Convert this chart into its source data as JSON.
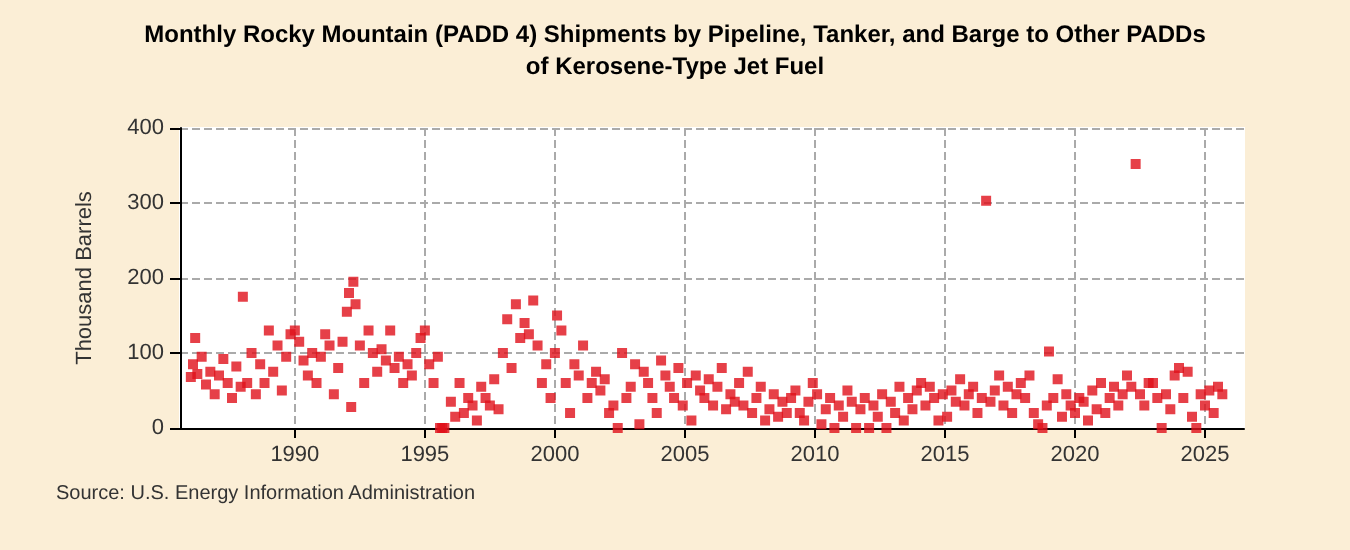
{
  "chart_data": {
    "type": "scatter",
    "title": "Monthly Rocky Mountain (PADD 4) Shipments by Pipeline, Tanker, and Barge to Other PADDs\nof Kerosene-Type Jet Fuel",
    "ylabel": "Thousand Barrels",
    "annotations": [
      "Source: U.S. Energy Information Administration"
    ],
    "x": [
      "1986-01",
      "1986-02",
      "1986-03",
      "1986-04",
      "1986-06",
      "1986-08",
      "1986-10",
      "1986-12",
      "1987-02",
      "1987-04",
      "1987-06",
      "1987-08",
      "1987-10",
      "1987-12",
      "1988-01",
      "1988-03",
      "1988-05",
      "1988-07",
      "1988-09",
      "1988-11",
      "1989-01",
      "1989-03",
      "1989-05",
      "1989-07",
      "1989-09",
      "1989-11",
      "1990-01",
      "1990-03",
      "1990-05",
      "1990-07",
      "1990-09",
      "1990-11",
      "1991-01",
      "1991-03",
      "1991-05",
      "1991-07",
      "1991-09",
      "1991-11",
      "1992-01",
      "1992-02",
      "1992-03",
      "1992-04",
      "1992-05",
      "1992-07",
      "1992-09",
      "1992-11",
      "1993-01",
      "1993-03",
      "1993-05",
      "1993-07",
      "1993-09",
      "1993-11",
      "1994-01",
      "1994-03",
      "1994-05",
      "1994-07",
      "1994-09",
      "1994-11",
      "1995-01",
      "1995-03",
      "1995-05",
      "1995-07",
      "1995-08",
      "1995-09",
      "1995-10",
      "1996-01",
      "1996-03",
      "1996-05",
      "1996-07",
      "1996-09",
      "1996-11",
      "1997-01",
      "1997-03",
      "1997-05",
      "1997-07",
      "1997-09",
      "1997-11",
      "1998-01",
      "1998-03",
      "1998-05",
      "1998-07",
      "1998-09",
      "1998-11",
      "1999-01",
      "1999-03",
      "1999-05",
      "1999-07",
      "1999-09",
      "1999-11",
      "2000-01",
      "2000-02",
      "2000-04",
      "2000-06",
      "2000-08",
      "2000-10",
      "2000-12",
      "2001-02",
      "2001-04",
      "2001-06",
      "2001-08",
      "2001-10",
      "2001-12",
      "2002-02",
      "2002-04",
      "2002-06",
      "2002-08",
      "2002-10",
      "2002-12",
      "2003-02",
      "2003-04",
      "2003-06",
      "2003-08",
      "2003-10",
      "2003-12",
      "2004-02",
      "2004-04",
      "2004-06",
      "2004-08",
      "2004-10",
      "2004-12",
      "2005-02",
      "2005-04",
      "2005-06",
      "2005-08",
      "2005-10",
      "2005-12",
      "2006-02",
      "2006-04",
      "2006-06",
      "2006-08",
      "2006-10",
      "2006-12",
      "2007-02",
      "2007-04",
      "2007-06",
      "2007-08",
      "2007-10",
      "2007-12",
      "2008-02",
      "2008-04",
      "2008-06",
      "2008-08",
      "2008-10",
      "2008-12",
      "2009-02",
      "2009-04",
      "2009-06",
      "2009-08",
      "2009-10",
      "2009-12",
      "2010-02",
      "2010-04",
      "2010-06",
      "2010-08",
      "2010-10",
      "2010-12",
      "2011-02",
      "2011-04",
      "2011-06",
      "2011-08",
      "2011-10",
      "2011-12",
      "2012-02",
      "2012-04",
      "2012-06",
      "2012-08",
      "2012-10",
      "2012-12",
      "2013-02",
      "2013-04",
      "2013-06",
      "2013-08",
      "2013-10",
      "2013-12",
      "2014-02",
      "2014-04",
      "2014-06",
      "2014-08",
      "2014-10",
      "2014-12",
      "2015-02",
      "2015-04",
      "2015-06",
      "2015-08",
      "2015-10",
      "2015-12",
      "2016-02",
      "2016-04",
      "2016-06",
      "2016-08",
      "2016-10",
      "2016-12",
      "2017-02",
      "2017-04",
      "2017-06",
      "2017-08",
      "2017-10",
      "2017-12",
      "2018-02",
      "2018-04",
      "2018-06",
      "2018-08",
      "2018-10",
      "2018-12",
      "2019-01",
      "2019-03",
      "2019-05",
      "2019-07",
      "2019-09",
      "2019-11",
      "2020-01",
      "2020-03",
      "2020-05",
      "2020-07",
      "2020-09",
      "2020-11",
      "2021-01",
      "2021-03",
      "2021-05",
      "2021-07",
      "2021-09",
      "2021-11",
      "2022-01",
      "2022-03",
      "2022-05",
      "2022-07",
      "2022-09",
      "2022-11",
      "2023-01",
      "2023-03",
      "2023-05",
      "2023-07",
      "2023-09",
      "2023-11",
      "2024-01",
      "2024-03",
      "2024-05",
      "2024-07",
      "2024-09",
      "2024-11",
      "2025-01",
      "2025-03",
      "2025-05",
      "2025-07",
      "2025-09"
    ],
    "values": [
      68,
      85,
      120,
      72,
      95,
      58,
      75,
      45,
      70,
      92,
      60,
      40,
      82,
      55,
      175,
      60,
      100,
      45,
      85,
      60,
      130,
      75,
      110,
      50,
      95,
      125,
      130,
      115,
      90,
      70,
      100,
      60,
      95,
      125,
      110,
      45,
      80,
      115,
      155,
      180,
      28,
      195,
      165,
      110,
      60,
      130,
      100,
      75,
      105,
      90,
      130,
      80,
      95,
      60,
      85,
      70,
      100,
      120,
      130,
      85,
      60,
      95,
      0,
      0,
      0,
      35,
      15,
      60,
      20,
      40,
      30,
      10,
      55,
      40,
      30,
      65,
      25,
      100,
      145,
      80,
      165,
      120,
      140,
      125,
      170,
      110,
      60,
      85,
      40,
      100,
      150,
      130,
      60,
      20,
      85,
      70,
      110,
      40,
      60,
      75,
      50,
      65,
      20,
      30,
      0,
      100,
      40,
      55,
      85,
      5,
      75,
      60,
      40,
      20,
      90,
      70,
      55,
      40,
      80,
      30,
      60,
      10,
      70,
      50,
      40,
      65,
      30,
      55,
      80,
      25,
      45,
      35,
      60,
      30,
      75,
      20,
      40,
      55,
      10,
      25,
      45,
      15,
      35,
      20,
      40,
      50,
      20,
      10,
      35,
      60,
      45,
      5,
      25,
      40,
      0,
      30,
      15,
      50,
      35,
      0,
      25,
      40,
      0,
      30,
      15,
      45,
      0,
      35,
      20,
      55,
      10,
      40,
      25,
      50,
      60,
      30,
      55,
      40,
      10,
      45,
      15,
      50,
      35,
      65,
      30,
      45,
      55,
      20,
      40,
      303,
      35,
      50,
      70,
      30,
      55,
      20,
      45,
      60,
      40,
      70,
      20,
      5,
      0,
      30,
      102,
      40,
      65,
      15,
      45,
      30,
      20,
      40,
      35,
      10,
      50,
      25,
      60,
      20,
      40,
      55,
      30,
      45,
      70,
      55,
      352,
      45,
      30,
      60,
      60,
      40,
      0,
      45,
      25,
      70,
      80,
      40,
      75,
      15,
      0,
      45,
      30,
      50,
      20,
      55,
      45
    ],
    "color": "#e0101a",
    "marker": "square",
    "xlim": [
      "1985-08",
      "2026-07"
    ],
    "xticks": [
      "1990",
      "1995",
      "2000",
      "2005",
      "2010",
      "2015",
      "2020",
      "2025"
    ],
    "ylim": [
      0,
      400
    ],
    "yticks": [
      0,
      100,
      200,
      300,
      400
    ],
    "grid": true
  }
}
